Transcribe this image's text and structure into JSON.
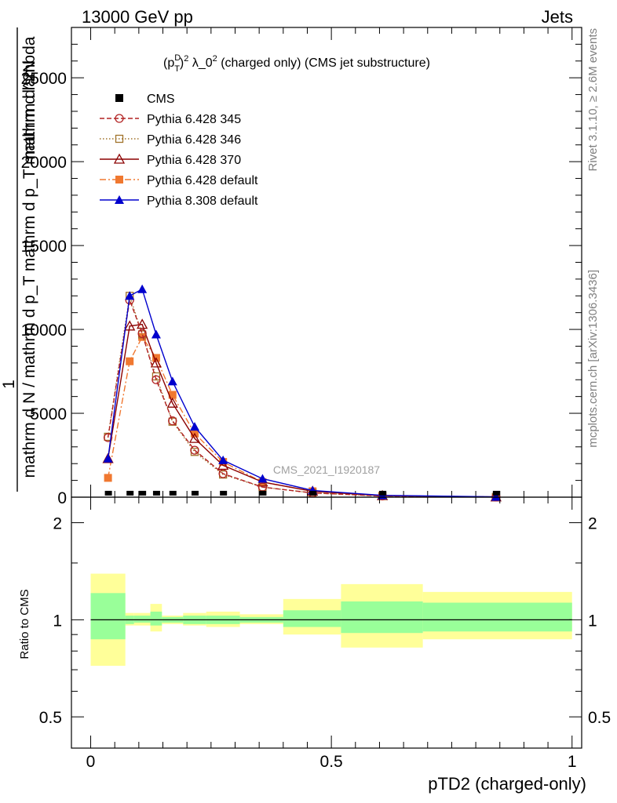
{
  "header": {
    "left": "13000 GeV pp",
    "right": "Jets"
  },
  "side_labels": {
    "rivet": "Rivet 3.1.10, ≥ 2.6M events",
    "mcplots": "mcplots.cern.ch [arXiv:1306.3436]"
  },
  "watermark": "CMS_2021_I1920187",
  "chart_data": [
    {
      "type": "line",
      "title": "(p_T^D)^2 λ_0^2 (charged only) (CMS jet substructure)",
      "title_parts": [
        "(p",
        "D",
        "T",
        ")",
        "2",
        " λ_0",
        "2",
        " (charged only) (CMS jet substructure)"
      ],
      "ylabel_lines": [
        "1",
        "mathrm d N / mathrm d p_T mathrm d p_T mathrm d lambda",
        "mathrm d^2N"
      ],
      "xlabel": "pTD2 (charged-only)",
      "xlim": [
        -0.04,
        1.02
      ],
      "ylim": [
        0,
        28000
      ],
      "y_ticks": [
        0,
        5000,
        10000,
        15000,
        20000,
        25000
      ],
      "y_tick_labels": [
        "0",
        "5000",
        "10000",
        "15000",
        "20000",
        "25000"
      ],
      "legend_position": "top-left",
      "x": [
        0.036,
        0.081,
        0.107,
        0.136,
        0.17,
        0.216,
        0.275,
        0.357,
        0.461,
        0.606,
        0.842
      ],
      "x_edges": [
        0.0,
        0.072,
        0.09,
        0.124,
        0.148,
        0.192,
        0.24,
        0.31,
        0.4,
        0.52,
        0.69,
        1.0
      ],
      "series": [
        {
          "name": "CMS",
          "color": "#000000",
          "marker": "square-filled",
          "dash": "none",
          "values": [
            4,
            4,
            4,
            4,
            4,
            4,
            4,
            4,
            4,
            4,
            4
          ]
        },
        {
          "name": "Pythia 6.428 345",
          "color": "#b22222",
          "marker": "circle-open",
          "dash": "6,3",
          "values": [
            3550,
            11750,
            9750,
            7000,
            4550,
            2800,
            1400,
            600,
            250,
            70,
            10
          ]
        },
        {
          "name": "Pythia 6.428 346",
          "color": "#a0722a",
          "marker": "square-open",
          "dash": "1.5,2.5",
          "values": [
            3600,
            12000,
            9700,
            7200,
            4500,
            2700,
            1350,
            600,
            250,
            70,
            10
          ]
        },
        {
          "name": "Pythia 6.428 370",
          "color": "#8b0000",
          "marker": "triangle-open",
          "dash": "none",
          "values": [
            2300,
            10200,
            10300,
            8000,
            5600,
            3500,
            1900,
            900,
            350,
            90,
            15
          ]
        },
        {
          "name": "Pythia 6.428 default",
          "color": "#f07830",
          "marker": "square-filled",
          "dash": "8,3,2,3",
          "values": [
            1150,
            8100,
            9550,
            8300,
            6100,
            3800,
            2100,
            900,
            350,
            90,
            15
          ]
        },
        {
          "name": "Pythia 8.308 default",
          "color": "#0000cd",
          "marker": "triangle-filled",
          "dash": "none",
          "values": [
            2300,
            12000,
            12400,
            9700,
            6900,
            4200,
            2200,
            1100,
            400,
            110,
            20
          ]
        }
      ]
    },
    {
      "type": "area",
      "ylabel": "Ratio to CMS",
      "xlabel": "pTD2 (charged-only)",
      "scale": "log",
      "ylim": [
        0.4,
        2.4
      ],
      "y_ticks": [
        0.5,
        1,
        2
      ],
      "y_tick_labels": [
        "0.5",
        "1",
        "2"
      ],
      "x_ticks": [
        0,
        0.5,
        1
      ],
      "x_tick_labels": [
        "0",
        "0.5",
        "1"
      ],
      "reference_line": 1,
      "bands": {
        "x_edges": [
          0.0,
          0.072,
          0.09,
          0.124,
          0.148,
          0.192,
          0.24,
          0.31,
          0.4,
          0.52,
          0.69,
          1.0
        ],
        "inner": {
          "color": "#99ff99",
          "lower": [
            0.87,
            0.97,
            0.98,
            0.96,
            0.98,
            0.97,
            0.97,
            0.98,
            0.95,
            0.91,
            0.92
          ],
          "upper": [
            1.21,
            1.03,
            1.03,
            1.06,
            1.02,
            1.03,
            1.03,
            1.02,
            1.07,
            1.14,
            1.13
          ]
        },
        "outer": {
          "color": "#ffff99",
          "lower": [
            0.72,
            0.96,
            0.96,
            0.92,
            0.97,
            0.96,
            0.95,
            0.97,
            0.9,
            0.82,
            0.87
          ],
          "upper": [
            1.39,
            1.05,
            1.05,
            1.12,
            1.03,
            1.05,
            1.06,
            1.04,
            1.16,
            1.29,
            1.22
          ]
        }
      }
    }
  ]
}
